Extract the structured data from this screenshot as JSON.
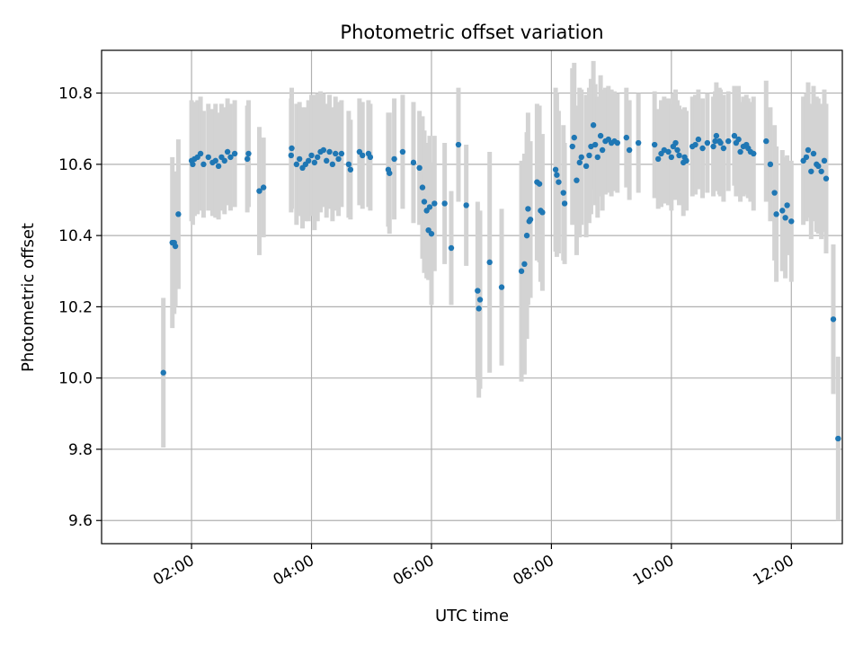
{
  "chart_data": {
    "type": "scatter",
    "title": "Photometric offset variation",
    "xlabel": "UTC time",
    "ylabel": "Photometric offset",
    "x_unit": "hours UTC",
    "xlim": [
      0.5,
      12.85
    ],
    "ylim": [
      9.535,
      10.92
    ],
    "x_ticks": [
      2,
      4,
      6,
      8,
      10,
      12
    ],
    "x_tick_labels": [
      "02:00",
      "04:00",
      "06:00",
      "08:00",
      "10:00",
      "12:00"
    ],
    "y_ticks": [
      9.6,
      9.8,
      10.0,
      10.2,
      10.4,
      10.6,
      10.8
    ],
    "y_tick_labels": [
      "9.6",
      "9.8",
      "10.0",
      "10.2",
      "10.4",
      "10.6",
      "10.8"
    ],
    "grid": true,
    "point_color": "#1f77b4",
    "errorbar_color": "#d3d3d3",
    "series": [
      {
        "x": [
          1.53,
          1.68,
          1.71,
          1.73,
          1.78,
          2.0,
          2.02,
          2.05,
          2.1,
          2.15,
          2.2,
          2.28,
          2.35,
          2.4,
          2.45,
          2.5,
          2.55,
          2.6,
          2.65,
          2.72,
          2.93,
          2.95,
          3.13,
          3.2,
          3.66,
          3.67,
          3.75,
          3.8,
          3.85,
          3.9,
          3.95,
          4.0,
          4.05,
          4.1,
          4.15,
          4.2,
          4.25,
          4.3,
          4.35,
          4.4,
          4.45,
          4.5,
          4.62,
          4.65,
          4.8,
          4.85,
          4.95,
          4.98,
          5.28,
          5.3,
          5.38,
          5.52,
          5.7,
          5.8,
          5.85,
          5.88,
          5.92,
          5.95,
          5.97,
          6.0,
          6.05,
          6.22,
          6.33,
          6.45,
          6.58,
          6.77,
          6.79,
          6.81,
          6.97,
          7.17,
          7.5,
          7.55,
          7.59,
          7.61,
          7.63,
          7.65,
          7.76,
          7.8,
          7.82,
          7.85,
          8.07,
          8.09,
          8.12,
          8.2,
          8.22,
          8.35,
          8.38,
          8.42,
          8.47,
          8.5,
          8.58,
          8.63,
          8.66,
          8.7,
          8.73,
          8.77,
          8.82,
          8.85,
          8.9,
          8.95,
          9.0,
          9.05,
          9.1,
          9.25,
          9.3,
          9.45,
          9.72,
          9.78,
          9.83,
          9.88,
          9.95,
          10.0,
          10.03,
          10.07,
          10.1,
          10.13,
          10.2,
          10.22,
          10.25,
          10.35,
          10.4,
          10.45,
          10.52,
          10.6,
          10.7,
          10.73,
          10.75,
          10.8,
          10.82,
          10.87,
          10.95,
          11.05,
          11.08,
          11.12,
          11.15,
          11.2,
          11.25,
          11.28,
          11.32,
          11.37,
          11.58,
          11.65,
          11.72,
          11.75,
          11.85,
          11.9,
          11.93,
          12.0,
          12.2,
          12.25,
          12.28,
          12.33,
          12.37,
          12.42,
          12.45,
          12.5,
          12.55,
          12.58,
          12.7,
          12.78
        ],
        "y": [
          10.015,
          10.38,
          10.38,
          10.37,
          10.46,
          10.61,
          10.6,
          10.615,
          10.62,
          10.63,
          10.6,
          10.62,
          10.605,
          10.61,
          10.595,
          10.62,
          10.61,
          10.635,
          10.62,
          10.63,
          10.615,
          10.63,
          10.525,
          10.535,
          10.625,
          10.645,
          10.6,
          10.615,
          10.59,
          10.6,
          10.61,
          10.625,
          10.605,
          10.62,
          10.635,
          10.64,
          10.61,
          10.635,
          10.6,
          10.63,
          10.615,
          10.63,
          10.6,
          10.585,
          10.635,
          10.625,
          10.63,
          10.62,
          10.585,
          10.575,
          10.615,
          10.635,
          10.605,
          10.59,
          10.535,
          10.495,
          10.47,
          10.415,
          10.48,
          10.405,
          10.49,
          10.49,
          10.365,
          10.655,
          10.485,
          10.245,
          10.195,
          10.22,
          10.325,
          10.255,
          10.3,
          10.32,
          10.4,
          10.475,
          10.44,
          10.445,
          10.55,
          10.545,
          10.47,
          10.465,
          10.585,
          10.57,
          10.55,
          10.52,
          10.49,
          10.65,
          10.675,
          10.555,
          10.605,
          10.62,
          10.595,
          10.625,
          10.65,
          10.71,
          10.655,
          10.62,
          10.68,
          10.64,
          10.665,
          10.67,
          10.66,
          10.665,
          10.66,
          10.675,
          10.64,
          10.66,
          10.655,
          10.615,
          10.63,
          10.64,
          10.635,
          10.62,
          10.65,
          10.66,
          10.64,
          10.625,
          10.605,
          10.62,
          10.61,
          10.65,
          10.655,
          10.67,
          10.645,
          10.66,
          10.65,
          10.665,
          10.68,
          10.665,
          10.66,
          10.645,
          10.665,
          10.68,
          10.66,
          10.67,
          10.635,
          10.65,
          10.655,
          10.645,
          10.635,
          10.63,
          10.665,
          10.6,
          10.52,
          10.46,
          10.47,
          10.45,
          10.485,
          10.44,
          10.61,
          10.62,
          10.64,
          10.58,
          10.63,
          10.6,
          10.595,
          10.58,
          10.61,
          10.56,
          10.165,
          9.83
        ],
        "err": [
          0.21,
          0.24,
          0.2,
          0.17,
          0.21,
          0.17,
          0.17,
          0.16,
          0.16,
          0.16,
          0.15,
          0.15,
          0.15,
          0.16,
          0.15,
          0.15,
          0.15,
          0.15,
          0.15,
          0.15,
          0.15,
          0.15,
          0.18,
          0.14,
          0.16,
          0.17,
          0.17,
          0.16,
          0.17,
          0.16,
          0.17,
          0.17,
          0.19,
          0.18,
          0.17,
          0.16,
          0.16,
          0.16,
          0.16,
          0.16,
          0.16,
          0.15,
          0.15,
          0.14,
          0.15,
          0.15,
          0.15,
          0.15,
          0.16,
          0.17,
          0.17,
          0.16,
          0.17,
          0.16,
          0.2,
          0.2,
          0.19,
          0.14,
          0.2,
          0.2,
          0.19,
          0.17,
          0.16,
          0.16,
          0.17,
          0.25,
          0.25,
          0.25,
          0.31,
          0.22,
          0.31,
          0.31,
          0.29,
          0.27,
          0.2,
          0.22,
          0.22,
          0.22,
          0.2,
          0.22,
          0.23,
          0.23,
          0.2,
          0.19,
          0.17,
          0.22,
          0.21,
          0.21,
          0.21,
          0.19,
          0.2,
          0.19,
          0.19,
          0.18,
          0.17,
          0.17,
          0.17,
          0.17,
          0.15,
          0.15,
          0.15,
          0.14,
          0.14,
          0.14,
          0.14,
          0.14,
          0.15,
          0.14,
          0.15,
          0.15,
          0.15,
          0.15,
          0.15,
          0.15,
          0.14,
          0.14,
          0.15,
          0.14,
          0.14,
          0.14,
          0.14,
          0.14,
          0.14,
          0.14,
          0.14,
          0.14,
          0.15,
          0.15,
          0.15,
          0.15,
          0.14,
          0.14,
          0.15,
          0.15,
          0.14,
          0.14,
          0.14,
          0.14,
          0.14,
          0.16,
          0.17,
          0.16,
          0.19,
          0.19,
          0.17,
          0.17,
          0.14,
          0.17,
          0.18,
          0.18,
          0.19,
          0.19,
          0.19,
          0.19,
          0.19,
          0.19,
          0.2,
          0.21,
          0.21,
          0.23
        ]
      }
    ]
  }
}
